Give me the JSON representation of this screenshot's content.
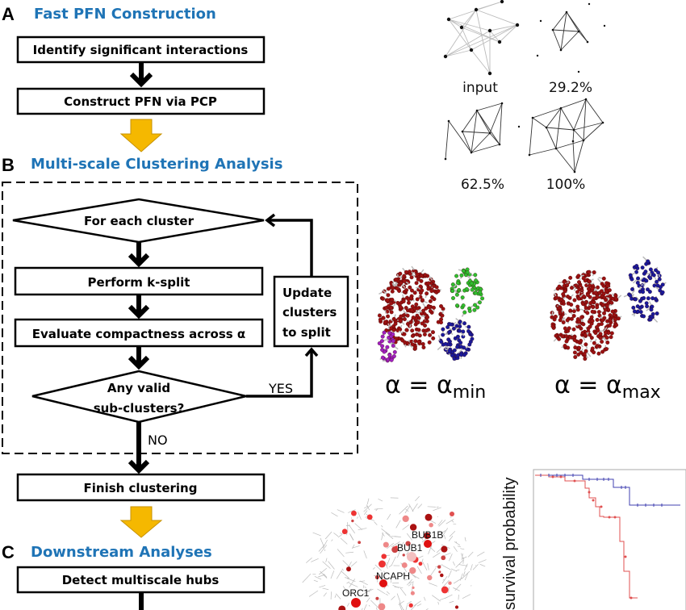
{
  "section_a": {
    "letter": "A",
    "title": "Fast PFN Construction",
    "steps": [
      "Identify significant interactions",
      "Construct PFN via PCP"
    ]
  },
  "section_b": {
    "letter": "B",
    "title": "Multi-scale Clustering Analysis",
    "loop_start": "For each cluster",
    "step1": "Perform k-split",
    "step2": "Evaluate compactness across α",
    "decision_line1": "Any valid",
    "decision_line2": "sub-clusters?",
    "update_lines": [
      "Update",
      "clusters",
      "to split"
    ],
    "yes": "YES",
    "no": "NO",
    "finish": "Finish clustering"
  },
  "section_c": {
    "letter": "C",
    "title": "Downstream Analyses",
    "step1": "Detect multiscale hubs"
  },
  "graphs": {
    "labels": [
      "input",
      "29.2%",
      "62.5%",
      "100%"
    ]
  },
  "alpha_labels": {
    "min_main": "α = α",
    "min_sub": "min",
    "max_main": "α = α",
    "max_sub": "max"
  },
  "network": {
    "hubs": [
      "BUB1B",
      "BUB1",
      "NCAPH",
      "ORC1"
    ]
  },
  "survival": {
    "ylabel": "survival probability"
  },
  "colors": {
    "title_blue": "#1f74b6",
    "arrow_yellow": "#f5b800",
    "cluster_red": "#9b1111",
    "cluster_blue": "#1a1a9c",
    "cluster_green": "#2fbf2f",
    "cluster_purple": "#a020c0",
    "km_blue": "#4040b0",
    "km_red": "#e05050"
  }
}
